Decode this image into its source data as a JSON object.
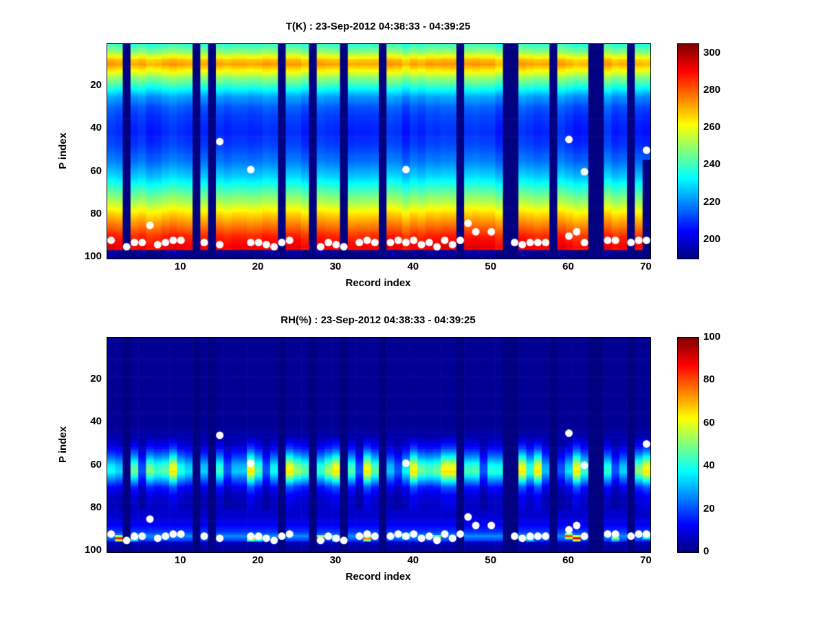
{
  "figure": {
    "background": "#ffffff",
    "text_color": "#000000",
    "missing_data_color_note": "darkest navy of jet colormap"
  },
  "chart_data": {
    "type": "heatmap",
    "layout_note": "two stacked MATLAB-style pcolor plots with jet colormap, colorbars on right, white scatter dots overlaid",
    "shared": {
      "xlabel": "Record index",
      "ylabel": "P index",
      "x_ticks": [
        10,
        20,
        30,
        40,
        50,
        60,
        70
      ],
      "y_ticks": [
        20,
        40,
        60,
        80,
        100
      ],
      "x_range": [
        0.5,
        70.5
      ],
      "y_range": [
        0.5,
        100.5
      ],
      "n_records": 70,
      "n_levels": 100,
      "y_axis_direction": "reversed (P index increases downward)",
      "missing_records": [
        3,
        12,
        14,
        23,
        27,
        31,
        36,
        46,
        52,
        53,
        58,
        63,
        64,
        68
      ],
      "dots": [
        [
          1,
          92
        ],
        [
          3,
          95
        ],
        [
          4,
          93
        ],
        [
          5,
          93
        ],
        [
          6,
          85
        ],
        [
          7,
          94
        ],
        [
          8,
          93
        ],
        [
          9,
          92
        ],
        [
          10,
          92
        ],
        [
          13,
          93
        ],
        [
          15,
          46
        ],
        [
          15,
          94
        ],
        [
          19,
          59
        ],
        [
          19,
          93
        ],
        [
          20,
          93
        ],
        [
          21,
          94
        ],
        [
          22,
          95
        ],
        [
          23,
          93
        ],
        [
          24,
          92
        ],
        [
          28,
          95
        ],
        [
          29,
          93
        ],
        [
          30,
          94
        ],
        [
          31,
          95
        ],
        [
          33,
          93
        ],
        [
          34,
          92
        ],
        [
          35,
          93
        ],
        [
          37,
          93
        ],
        [
          38,
          92
        ],
        [
          39,
          59
        ],
        [
          39,
          93
        ],
        [
          40,
          92
        ],
        [
          41,
          94
        ],
        [
          42,
          93
        ],
        [
          43,
          95
        ],
        [
          44,
          92
        ],
        [
          45,
          94
        ],
        [
          46,
          92
        ],
        [
          47,
          84
        ],
        [
          48,
          88
        ],
        [
          50,
          88
        ],
        [
          53,
          93
        ],
        [
          54,
          94
        ],
        [
          55,
          93
        ],
        [
          56,
          93
        ],
        [
          57,
          93
        ],
        [
          60,
          45
        ],
        [
          60,
          90
        ],
        [
          61,
          88
        ],
        [
          62,
          60
        ],
        [
          62,
          93
        ],
        [
          65,
          92
        ],
        [
          66,
          92
        ],
        [
          68,
          93
        ],
        [
          69,
          92
        ],
        [
          70,
          50
        ],
        [
          70,
          92
        ]
      ],
      "dot_color": "#ffffff",
      "dot_radius_px": 5.5
    },
    "charts": [
      {
        "id": "temperature",
        "title": "T(K) : 23-Sep-2012 04:38:33 - 04:39:25",
        "colorbar": {
          "min": 190,
          "max": 305,
          "ticks": [
            200,
            220,
            240,
            260,
            280,
            300
          ]
        },
        "profile": [
          [
            1,
            238
          ],
          [
            4,
            248
          ],
          [
            8,
            268
          ],
          [
            10,
            272
          ],
          [
            13,
            262
          ],
          [
            16,
            250
          ],
          [
            20,
            238
          ],
          [
            25,
            222
          ],
          [
            30,
            214
          ],
          [
            35,
            210
          ],
          [
            42,
            208
          ],
          [
            48,
            211
          ],
          [
            55,
            217
          ],
          [
            62,
            227
          ],
          [
            68,
            239
          ],
          [
            74,
            252
          ],
          [
            80,
            266
          ],
          [
            85,
            276
          ],
          [
            90,
            286
          ],
          [
            95,
            292
          ],
          [
            96,
            290
          ],
          [
            97,
            193
          ],
          [
            100,
            190
          ]
        ],
        "column_wiggle": 2.5,
        "partial_columns": [
          {
            "record": 70,
            "from_p": 55
          }
        ]
      },
      {
        "id": "relative_humidity",
        "title": "RH(%) : 23-Sep-2012 04:38:33 - 04:39:25",
        "colorbar": {
          "min": 0,
          "max": 100,
          "ticks": [
            0,
            20,
            40,
            60,
            80,
            100
          ]
        },
        "profile": [
          [
            1,
            2
          ],
          [
            40,
            2
          ],
          [
            44,
            3
          ],
          [
            48,
            6
          ],
          [
            52,
            12
          ],
          [
            56,
            24
          ],
          [
            60,
            38
          ],
          [
            63,
            42
          ],
          [
            66,
            30
          ],
          [
            70,
            14
          ],
          [
            74,
            8
          ],
          [
            78,
            6
          ],
          [
            84,
            8
          ],
          [
            88,
            12
          ],
          [
            91,
            18
          ],
          [
            93,
            26
          ],
          [
            95,
            18
          ],
          [
            96,
            6
          ],
          [
            100,
            2
          ]
        ],
        "column_wiggle": 0,
        "band": {
          "p_from": 48,
          "p_to": 80,
          "strong_records": [
            9,
            19,
            24,
            30,
            34,
            40,
            44,
            45,
            54,
            56,
            61,
            70
          ],
          "strong_factor": 1.55,
          "weak_records": [
            5,
            16,
            21,
            33,
            38,
            49,
            59,
            66
          ],
          "weak_factor": 0.5
        },
        "bottom_spikes": [
          {
            "record": 2,
            "p": 94,
            "value": 85
          },
          {
            "record": 4,
            "p": 94,
            "value": 50
          },
          {
            "record": 19,
            "p": 94,
            "value": 70
          },
          {
            "record": 20,
            "p": 94,
            "value": 55
          },
          {
            "record": 28,
            "p": 94,
            "value": 80
          },
          {
            "record": 30,
            "p": 94,
            "value": 55
          },
          {
            "record": 34,
            "p": 94,
            "value": 75
          },
          {
            "record": 39,
            "p": 93,
            "value": 60
          },
          {
            "record": 43,
            "p": 94,
            "value": 70
          },
          {
            "record": 55,
            "p": 94,
            "value": 50
          },
          {
            "record": 60,
            "p": 93,
            "value": 80
          },
          {
            "record": 61,
            "p": 94,
            "value": 90
          },
          {
            "record": 66,
            "p": 94,
            "value": 50
          },
          {
            "record": 70,
            "p": 93,
            "value": 55
          }
        ]
      }
    ]
  }
}
